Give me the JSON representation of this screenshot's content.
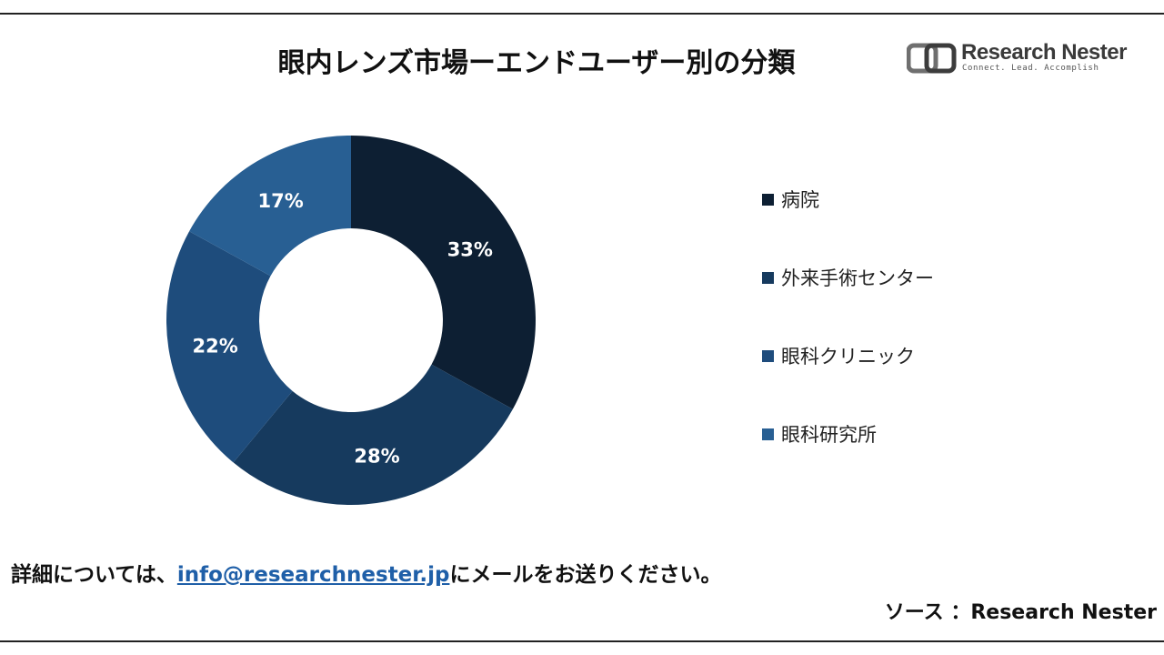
{
  "title": "眼内レンズ市場ーエンドユーザー別の分類",
  "logo": {
    "name": "Research Nester",
    "tagline": "Connect. Lead. Accomplish"
  },
  "chart_data": {
    "type": "pie",
    "donut": true,
    "categories": [
      "病院",
      "外来手術センター",
      "眼科クリニック",
      "眼科研究所"
    ],
    "values": [
      33,
      28,
      22,
      17
    ],
    "labels": [
      "33%",
      "28%",
      "22%",
      "17%"
    ],
    "colors": [
      "#0d1f33",
      "#163a5e",
      "#1e4c7c",
      "#285f93"
    ],
    "legend_position": "right"
  },
  "footer": {
    "prefix": "詳細については、",
    "email": "info@researchnester.jp",
    "suffix": "にメールをお送りください。"
  },
  "source": "ソース ：Research Nester"
}
